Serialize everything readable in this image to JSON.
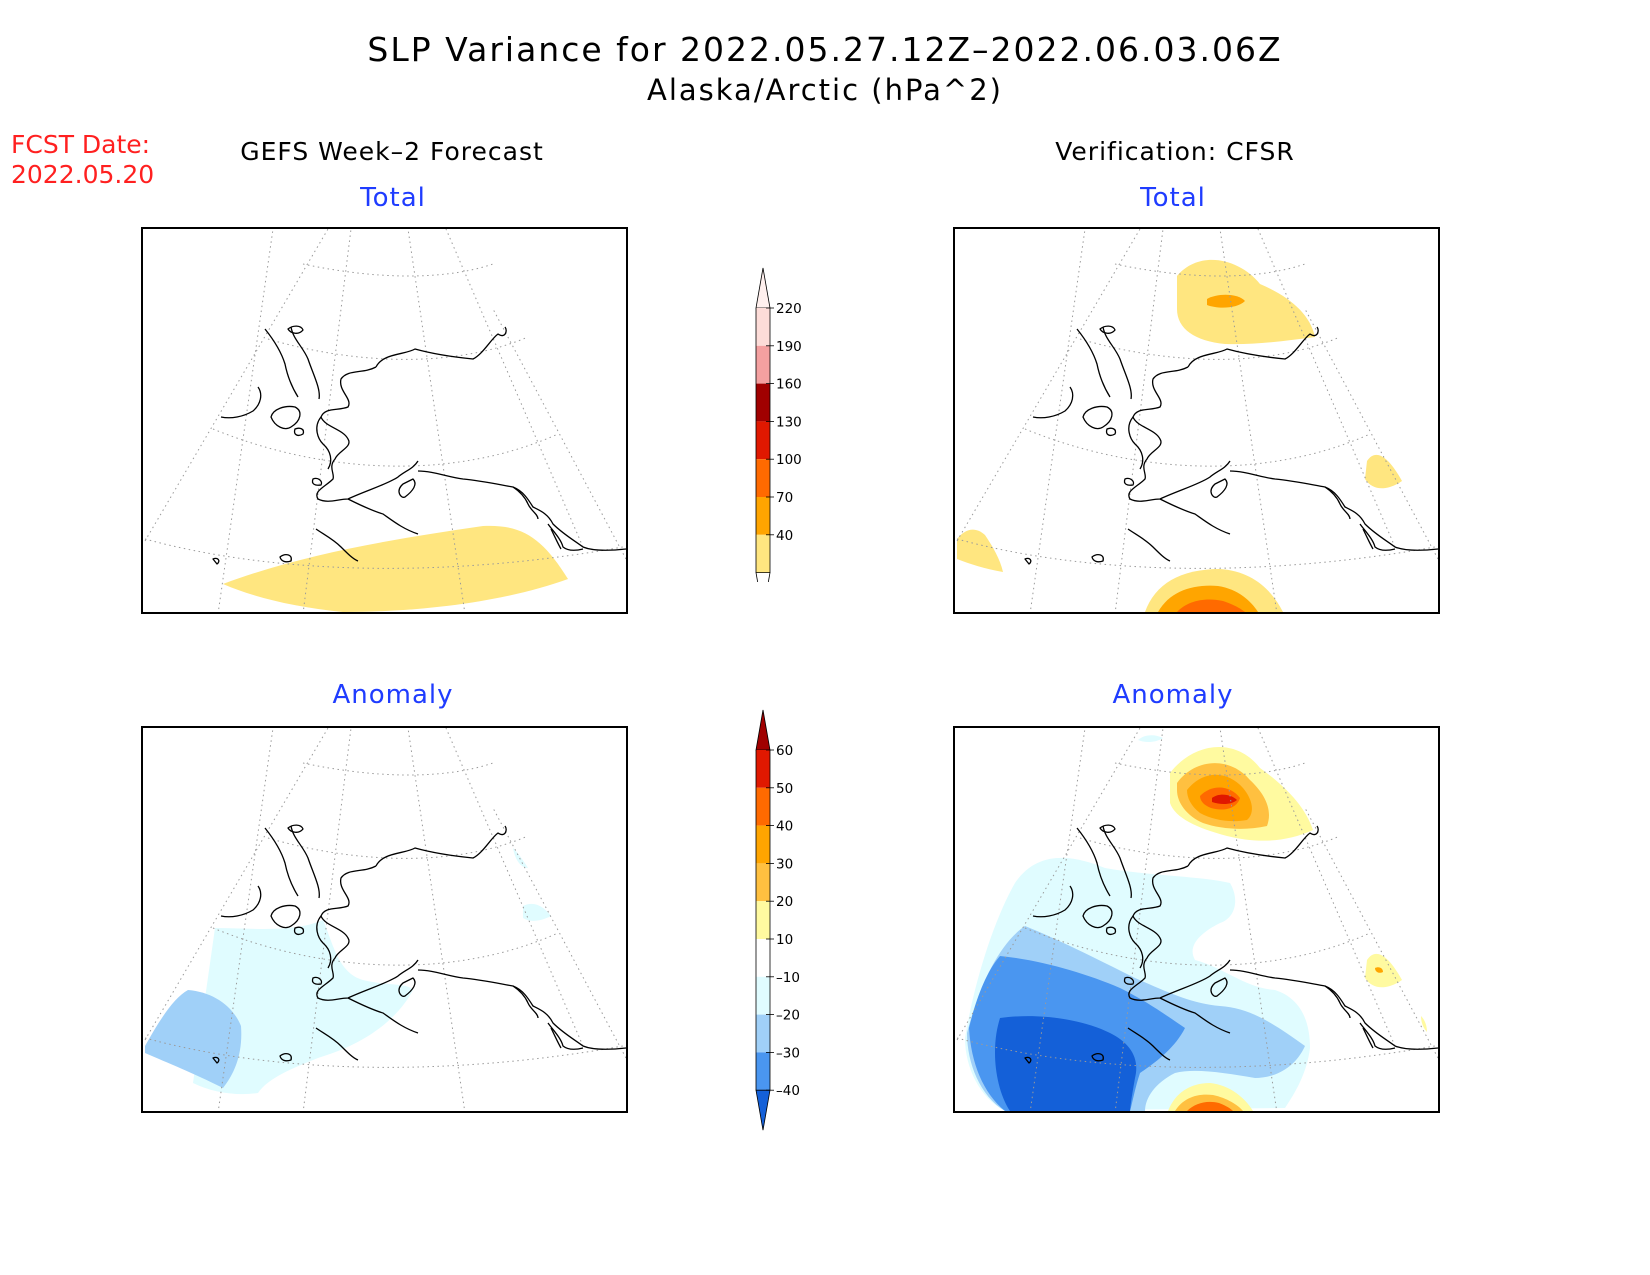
{
  "header": {
    "title_line1": "SLP Variance for 2022.05.27.12Z–2022.06.03.06Z",
    "title_line2": "Alaska/Arctic (hPa^2)"
  },
  "fcst": {
    "label": "FCST Date:",
    "date": "2022.05.20"
  },
  "columns": {
    "left": "GEFS Week–2 Forecast",
    "right": "Verification: CFSR"
  },
  "panels": {
    "total_label": "Total",
    "anomaly_label": "Anomaly"
  },
  "colorbars": {
    "total": {
      "levels": [
        "220",
        "190",
        "160",
        "130",
        "100",
        "70",
        "40"
      ],
      "colors": [
        "#fddcd8",
        "#f4a0a0",
        "#a00000",
        "#e01800",
        "#ff6a00",
        "#ffa500",
        "#ffe680"
      ]
    },
    "anomaly": {
      "levels": [
        "60",
        "50",
        "40",
        "30",
        "20",
        "10",
        "–10",
        "–20",
        "–30",
        "–40"
      ],
      "colors_top": [
        "#a00000",
        "#e01800",
        "#ff6a00",
        "#ffa500",
        "#ffc040",
        "#fffaa0",
        "#ffffff",
        "#e0fcff",
        "#a0d0f8",
        "#4a96f0",
        "#1460d8"
      ]
    }
  },
  "colors": {
    "coast": "#000000",
    "grid": "#9a9a9a"
  }
}
